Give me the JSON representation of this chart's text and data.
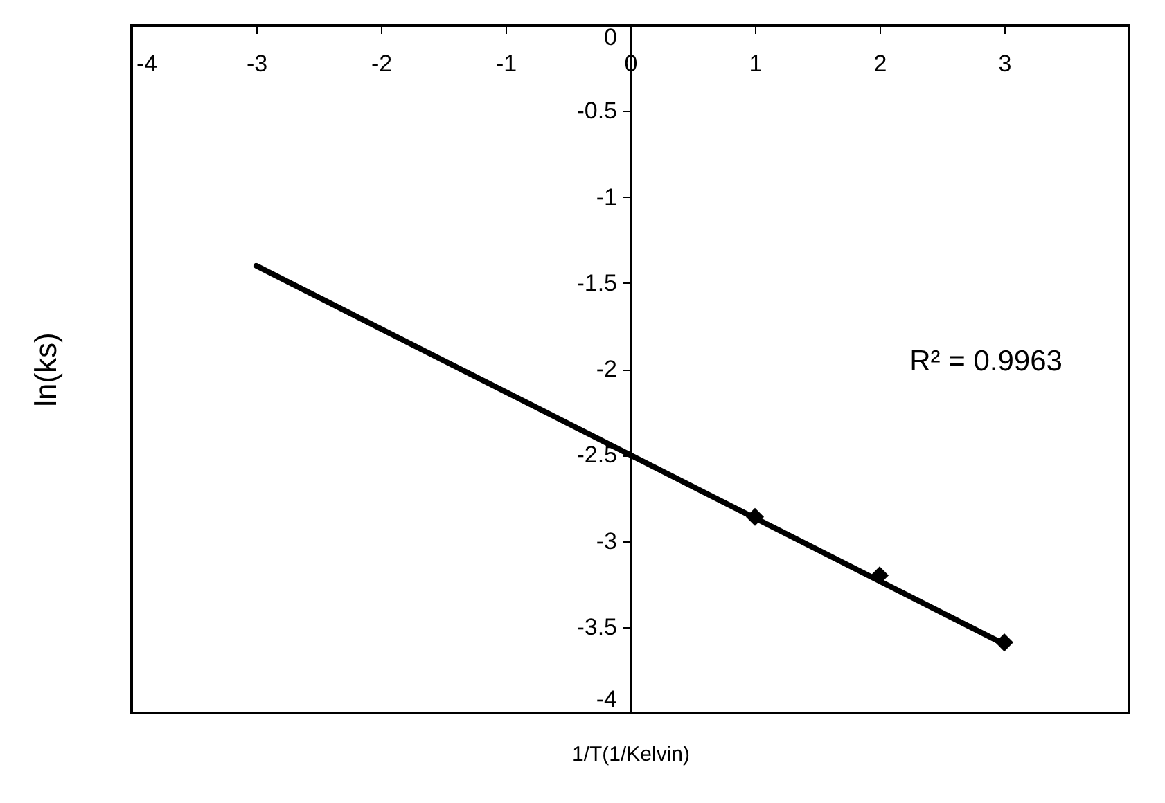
{
  "chart_data": {
    "type": "scatter",
    "xlabel": "1/T(1/Kelvin)",
    "ylabel": "ln(ks)",
    "xlim": [
      -4,
      4
    ],
    "ylim": [
      -4,
      0
    ],
    "xticks": [
      -4,
      -3,
      -2,
      -1,
      0,
      1,
      2,
      3
    ],
    "yticks": [
      0,
      -0.5,
      -1,
      -1.5,
      -2,
      -2.5,
      -3,
      -3.5,
      -4
    ],
    "grid": false,
    "annotations": [
      "R² = 0.9963"
    ],
    "series": [
      {
        "type": "line",
        "color": "#000000",
        "x": [
          -3,
          3
        ],
        "values": [
          -1.4,
          -3.6
        ],
        "marker": "none",
        "line_style": "solid"
      },
      {
        "color": "#000000",
        "x": [
          1,
          2,
          3
        ],
        "values": [
          -2.86,
          -3.2,
          -3.59
        ],
        "marker": "diamond"
      }
    ]
  }
}
